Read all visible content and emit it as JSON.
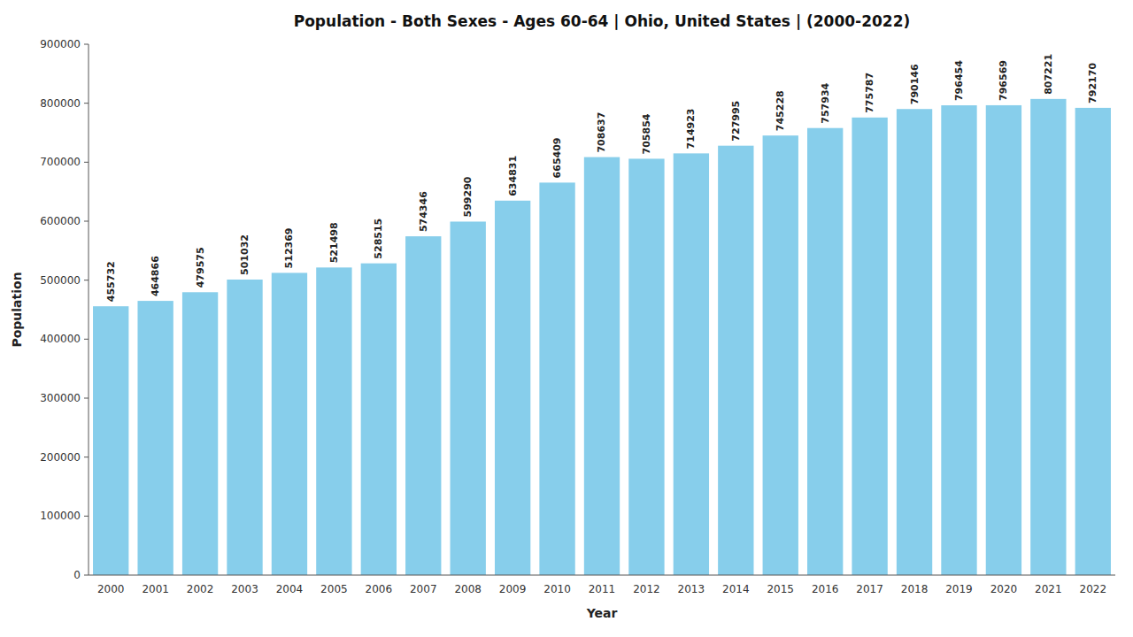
{
  "chart_data": {
    "type": "bar",
    "title": "Population - Both Sexes - Ages 60-64 | Ohio, United States |  (2000-2022)",
    "xlabel": "Year",
    "ylabel": "Population",
    "categories": [
      "2000",
      "2001",
      "2002",
      "2003",
      "2004",
      "2005",
      "2006",
      "2007",
      "2008",
      "2009",
      "2010",
      "2011",
      "2012",
      "2013",
      "2014",
      "2015",
      "2016",
      "2017",
      "2018",
      "2019",
      "2020",
      "2021",
      "2022"
    ],
    "values": [
      455732,
      464866,
      479575,
      501032,
      512369,
      521498,
      528515,
      574346,
      599290,
      634831,
      665409,
      708637,
      705854,
      714923,
      727995,
      745228,
      757934,
      775787,
      790146,
      796454,
      796569,
      807221,
      792170
    ],
    "color": "#87CEEB",
    "ylim": [
      0,
      900000
    ],
    "yticks": [
      0,
      100000,
      200000,
      300000,
      400000,
      500000,
      600000,
      700000,
      800000,
      900000
    ],
    "grid": false,
    "data_labels": true
  }
}
